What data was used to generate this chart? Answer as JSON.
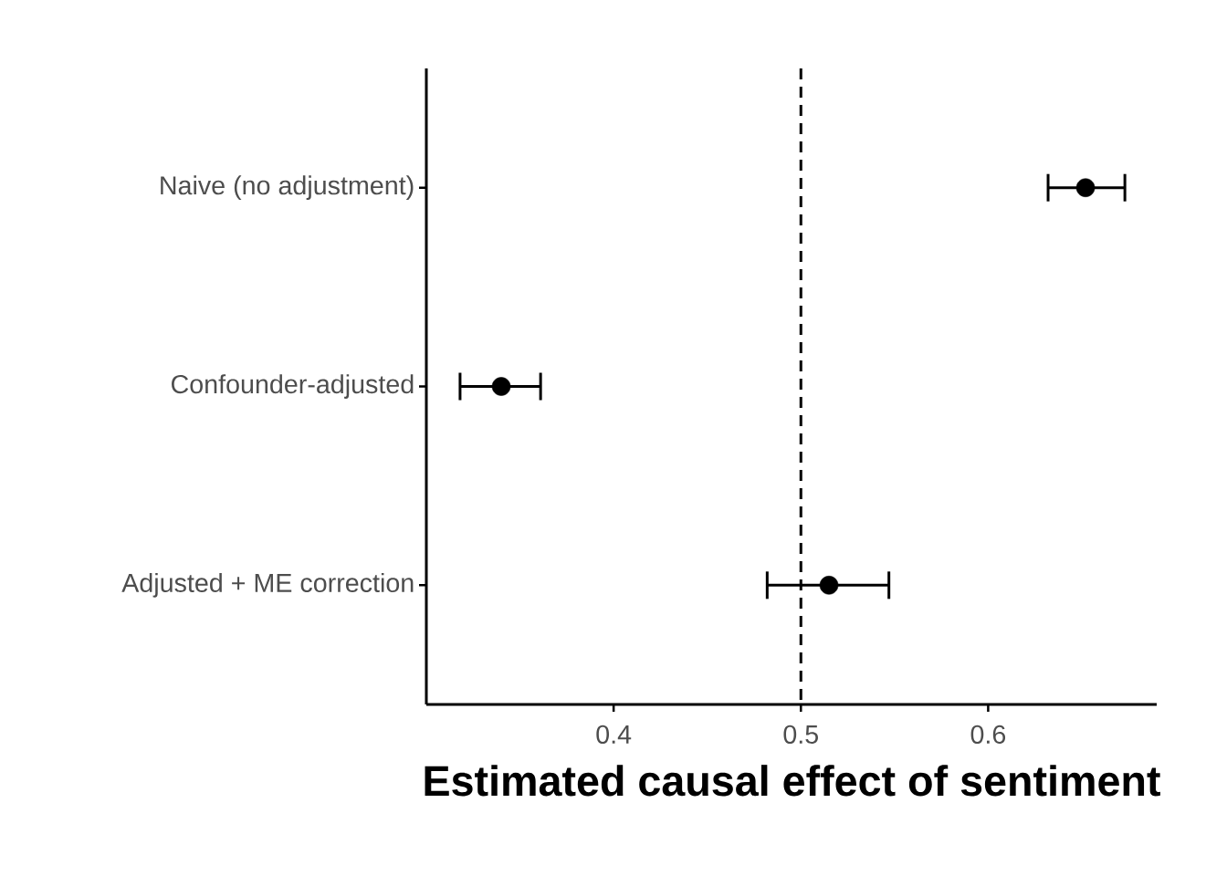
{
  "chart_data": {
    "type": "scatter",
    "orientation": "horizontal",
    "xlabel": "Estimated causal effect of sentiment",
    "categories": [
      "Naive (no adjustment)",
      "Confounder-adjusted",
      "Adjusted + ME correction"
    ],
    "values": [
      0.652,
      0.34,
      0.515
    ],
    "errors": [
      [
        0.632,
        0.673
      ],
      [
        0.318,
        0.361
      ],
      [
        0.482,
        0.547
      ]
    ],
    "color": "#000000",
    "marker": "circle",
    "xlim": [
      0.3,
      0.69
    ],
    "xticks": [
      0.4,
      0.5,
      0.6
    ],
    "ref_lines": [
      {
        "axis": "x",
        "value": 0.5,
        "line_style": "dashed",
        "color": "#000000"
      }
    ]
  }
}
